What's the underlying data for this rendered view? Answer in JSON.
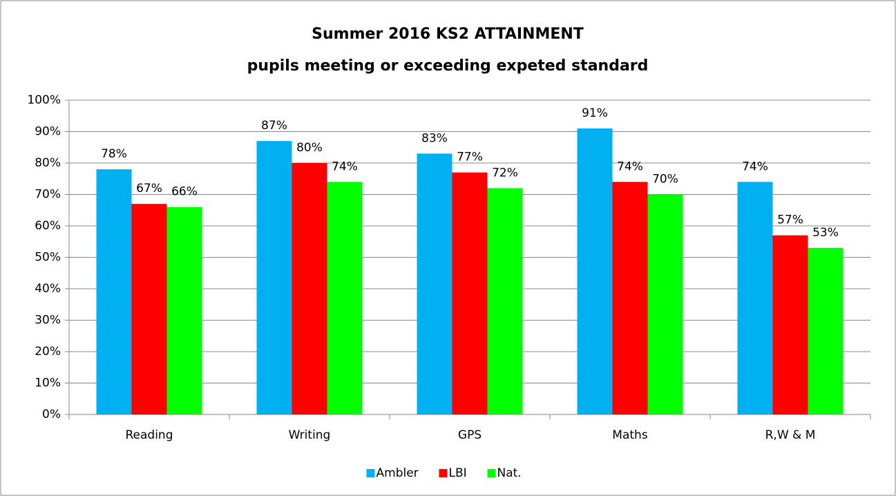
{
  "chart_data": {
    "type": "bar",
    "title": "Summer 2016 KS2 ATTAINMENT",
    "subtitle": "pupils meeting or exceeding expeted standard",
    "categories": [
      "Reading",
      "Writing",
      "GPS",
      "Maths",
      "R,W & M"
    ],
    "series": [
      {
        "name": "Ambler",
        "color": "#00b0f0",
        "values": [
          78,
          87,
          83,
          91,
          74
        ],
        "value_labels": [
          "78%",
          "87%",
          "83%",
          "91%",
          "74%"
        ]
      },
      {
        "name": "LBI",
        "color": "#ff0000",
        "values": [
          67,
          80,
          77,
          74,
          57
        ],
        "value_labels": [
          "67%",
          "80%",
          "77%",
          "74%",
          "57%"
        ]
      },
      {
        "name": "Nat.",
        "color": "#00ff00",
        "values": [
          66,
          74,
          72,
          70,
          53
        ],
        "value_labels": [
          "66%",
          "74%",
          "72%",
          "70%",
          "53%"
        ]
      }
    ],
    "ylim": [
      0,
      100
    ],
    "yticks": [
      {
        "value": 0,
        "label": "0%"
      },
      {
        "value": 10,
        "label": "10%"
      },
      {
        "value": 20,
        "label": "20%"
      },
      {
        "value": 30,
        "label": "30%"
      },
      {
        "value": 40,
        "label": "40%"
      },
      {
        "value": 50,
        "label": "50%"
      },
      {
        "value": 60,
        "label": "60%"
      },
      {
        "value": 70,
        "label": "70%"
      },
      {
        "value": 80,
        "label": "80%"
      },
      {
        "value": 90,
        "label": "90%"
      },
      {
        "value": 100,
        "label": "100%"
      }
    ],
    "grid": true,
    "legend": "bottom"
  }
}
